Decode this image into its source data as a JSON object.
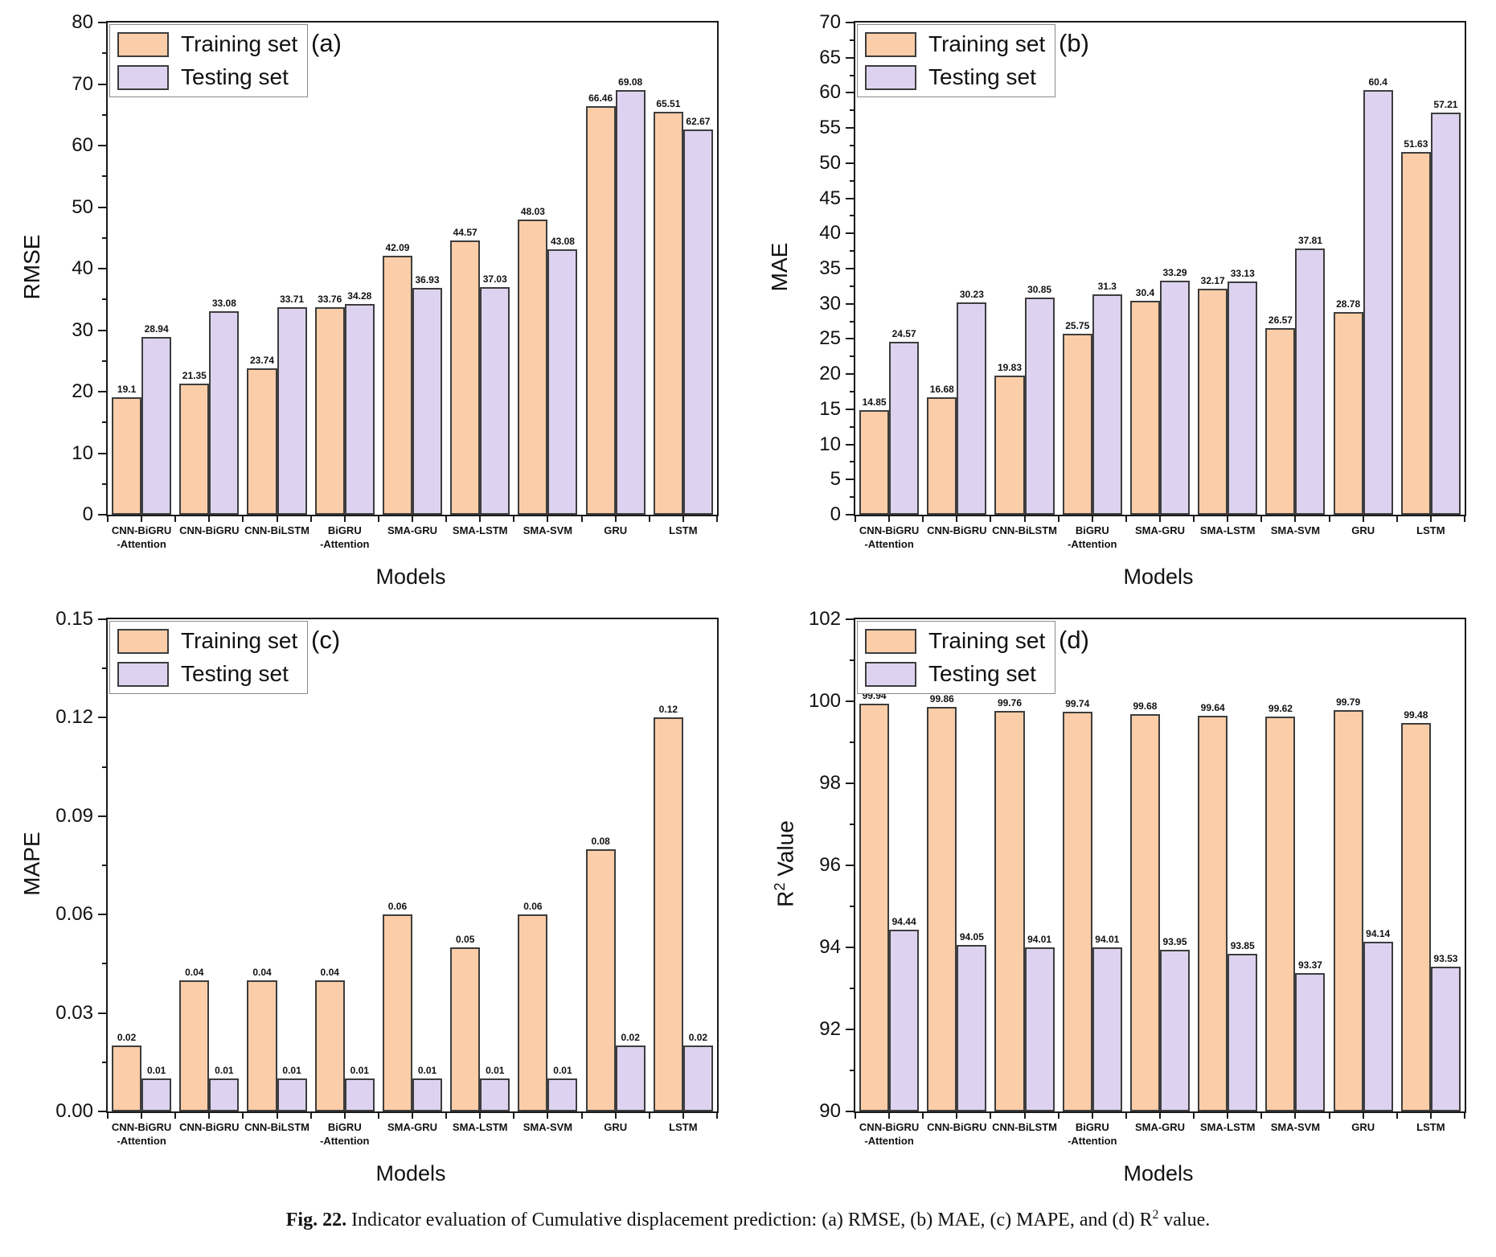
{
  "figure": {
    "caption": {
      "bold": "Fig. 22.",
      "rest": [
        " Indicator evaluation of Cumulative displacement prediction: (a) RMSE, (b) MAE, (c) MAPE, and (d) R",
        {
          "sup": "2"
        },
        " value."
      ]
    },
    "legend": {
      "training": "Training set",
      "testing": "Testing set"
    },
    "colors": {
      "training_fill": "#fbcda8",
      "testing_fill": "#ddd3f0",
      "bar_border": "#3d3d3d",
      "axis": "#1a1a1a"
    }
  },
  "chart_data": [
    {
      "type": "bar",
      "panel_label": "(a)",
      "ylabel_parts": [
        "RMSE"
      ],
      "xlabel": "Models",
      "ylim": [
        0,
        80
      ],
      "ytick_major": 10,
      "ytick_minor": 5,
      "ytick_decimals": 0,
      "grid": false,
      "legend_position": "top-left",
      "categories": [
        [
          "CNN-BiGRU",
          "-Attention"
        ],
        [
          "CNN-BiGRU"
        ],
        [
          "CNN-BiLSTM"
        ],
        [
          "BiGRU",
          "-Attention"
        ],
        [
          "SMA-GRU"
        ],
        [
          "SMA-LSTM"
        ],
        [
          "SMA-SVM"
        ],
        [
          "GRU"
        ],
        [
          "LSTM"
        ]
      ],
      "series": [
        {
          "name": "Training set",
          "values": [
            19.1,
            21.35,
            23.74,
            33.76,
            42.09,
            44.57,
            48.03,
            66.46,
            65.51
          ],
          "labels": [
            "19.1",
            "21.35",
            "23.74",
            "33.76",
            "42.09",
            "44.57",
            "48.03",
            "66.46",
            "65.51"
          ]
        },
        {
          "name": "Testing set",
          "values": [
            28.94,
            33.08,
            33.71,
            34.28,
            36.93,
            37.03,
            43.08,
            69.08,
            62.67
          ],
          "labels": [
            "28.94",
            "33.08",
            "33.71",
            "34.28",
            "36.93",
            "37.03",
            "43.08",
            "69.08",
            "62.67"
          ]
        }
      ]
    },
    {
      "type": "bar",
      "panel_label": "(b)",
      "ylabel_parts": [
        "MAE"
      ],
      "xlabel": "Models",
      "ylim": [
        0,
        70
      ],
      "ytick_major": 5,
      "ytick_minor": 2.5,
      "ytick_decimals": 0,
      "grid": false,
      "legend_position": "top-left",
      "categories": [
        [
          "CNN-BiGRU",
          "-Attention"
        ],
        [
          "CNN-BiGRU"
        ],
        [
          "CNN-BiLSTM"
        ],
        [
          "BiGRU",
          "-Attention"
        ],
        [
          "SMA-GRU"
        ],
        [
          "SMA-LSTM"
        ],
        [
          "SMA-SVM"
        ],
        [
          "GRU"
        ],
        [
          "LSTM"
        ]
      ],
      "series": [
        {
          "name": "Training set",
          "values": [
            14.85,
            16.68,
            19.83,
            25.75,
            30.4,
            32.17,
            26.57,
            28.78,
            51.63
          ],
          "labels": [
            "14.85",
            "16.68",
            "19.83",
            "25.75",
            "30.4",
            "32.17",
            "26.57",
            "28.78",
            "51.63"
          ]
        },
        {
          "name": "Testing set",
          "values": [
            24.57,
            30.23,
            30.85,
            31.3,
            33.29,
            33.13,
            37.81,
            60.4,
            57.21
          ],
          "labels": [
            "24.57",
            "30.23",
            "30.85",
            "31.3",
            "33.29",
            "33.13",
            "37.81",
            "60.4",
            "57.21"
          ]
        }
      ]
    },
    {
      "type": "bar",
      "panel_label": "(c)",
      "ylabel_parts": [
        "MAPE"
      ],
      "xlabel": "Models",
      "ylim": [
        0,
        0.15
      ],
      "ytick_major": 0.03,
      "ytick_minor": 0.015,
      "ytick_decimals": 2,
      "grid": false,
      "legend_position": "top-left",
      "categories": [
        [
          "CNN-BiGRU",
          "-Attention"
        ],
        [
          "CNN-BiGRU"
        ],
        [
          "CNN-BiLSTM"
        ],
        [
          "BiGRU",
          "-Attention"
        ],
        [
          "SMA-GRU"
        ],
        [
          "SMA-LSTM"
        ],
        [
          "SMA-SVM"
        ],
        [
          "GRU"
        ],
        [
          "LSTM"
        ]
      ],
      "series": [
        {
          "name": "Training set",
          "values": [
            0.02,
            0.04,
            0.04,
            0.04,
            0.06,
            0.05,
            0.06,
            0.08,
            0.12
          ],
          "labels": [
            "0.02",
            "0.04",
            "0.04",
            "0.04",
            "0.06",
            "0.05",
            "0.06",
            "0.08",
            "0.12"
          ]
        },
        {
          "name": "Testing set",
          "values": [
            0.01,
            0.01,
            0.01,
            0.01,
            0.01,
            0.01,
            0.01,
            0.02,
            0.02
          ],
          "labels": [
            "0.01",
            "0.01",
            "0.01",
            "0.01",
            "0.01",
            "0.01",
            "0.01",
            "0.02",
            "0.02"
          ]
        }
      ]
    },
    {
      "type": "bar",
      "panel_label": "(d)",
      "ylabel_parts": [
        "R",
        {
          "sup": "2"
        },
        " Value"
      ],
      "xlabel": "Models",
      "ylim": [
        90,
        102
      ],
      "ytick_major": 2,
      "ytick_minor": 1,
      "ytick_decimals": 0,
      "grid": false,
      "legend_position": "top-left",
      "categories": [
        [
          "CNN-BiGRU",
          "-Attention"
        ],
        [
          "CNN-BiGRU"
        ],
        [
          "CNN-BiLSTM"
        ],
        [
          "BiGRU",
          "-Attention"
        ],
        [
          "SMA-GRU"
        ],
        [
          "SMA-LSTM"
        ],
        [
          "SMA-SVM"
        ],
        [
          "GRU"
        ],
        [
          "LSTM"
        ]
      ],
      "series": [
        {
          "name": "Training set",
          "values": [
            99.94,
            99.86,
            99.76,
            99.74,
            99.68,
            99.64,
            99.62,
            99.79,
            99.48
          ],
          "labels": [
            "99.94",
            "99.86",
            "99.76",
            "99.74",
            "99.68",
            "99.64",
            "99.62",
            "99.79",
            "99.48"
          ]
        },
        {
          "name": "Testing set",
          "values": [
            94.44,
            94.05,
            94.01,
            94.01,
            93.95,
            93.85,
            93.37,
            94.14,
            93.53
          ],
          "labels": [
            "94.44",
            "94.05",
            "94.01",
            "94.01",
            "93.95",
            "93.85",
            "93.37",
            "94.14",
            "93.53"
          ]
        }
      ]
    }
  ]
}
